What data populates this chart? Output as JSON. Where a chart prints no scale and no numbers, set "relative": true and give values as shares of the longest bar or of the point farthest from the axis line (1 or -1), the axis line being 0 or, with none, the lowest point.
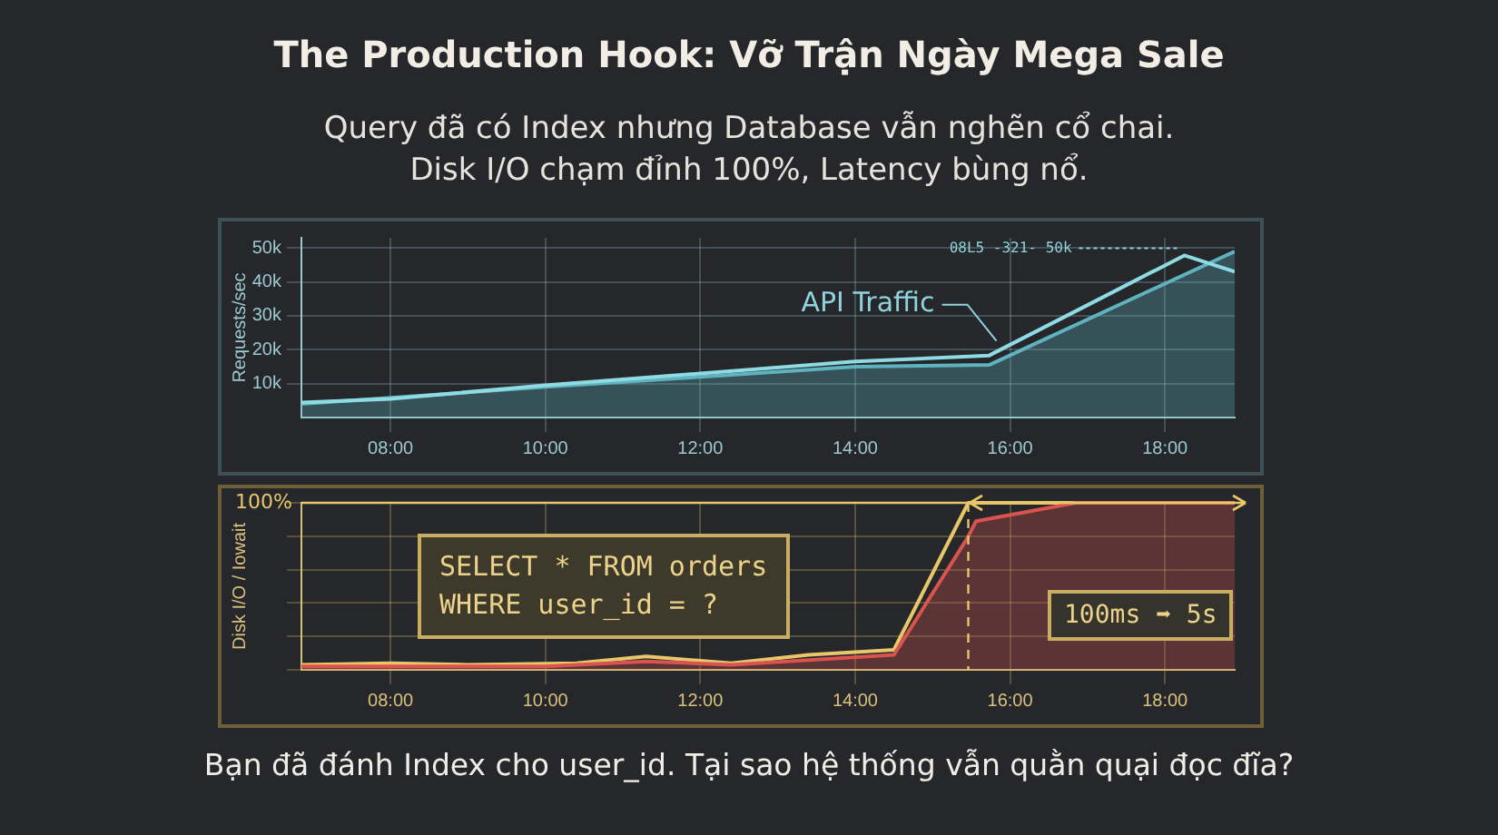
{
  "chart_data": [
    {
      "type": "line",
      "title": "The Production Hook: Vỡ Trận Ngày Mega Sale",
      "subtitle": "Query đã có Index nhưng Database vẫn nghẽn cổ chai.\nDisk I/O chạm đỉnh 100%, Latency bùng nổ.",
      "ylabel": "Requests/sec",
      "xlim": [
        6.85,
        18.9
      ],
      "xticks": [
        {
          "value": 8,
          "label": "08:00"
        },
        {
          "value": 10,
          "label": "10:00"
        },
        {
          "value": 12,
          "label": "12:00"
        },
        {
          "value": 14,
          "label": "14:00"
        },
        {
          "value": 16,
          "label": "16:00"
        },
        {
          "value": 18,
          "label": "18:00"
        }
      ],
      "ylim": [
        0,
        53000
      ],
      "yticks": [
        {
          "value": 10000,
          "label": "10k"
        },
        {
          "value": 20000,
          "label": "20k"
        },
        {
          "value": 30000,
          "label": "30k"
        },
        {
          "value": 40000,
          "label": "40k"
        },
        {
          "value": 50000,
          "label": "50k"
        }
      ],
      "series": [
        {
          "color": "#8fdbe4",
          "x": [
            6.85,
            8,
            10,
            12,
            14,
            15.73,
            17.2,
            18.25,
            18.9
          ],
          "values": [
            4400,
            5500,
            9500,
            13000,
            16500,
            18300,
            35500,
            47800,
            43000
          ]
        },
        {
          "type": "area",
          "color": "#5fb3bf",
          "x": [
            6.85,
            10,
            12,
            14,
            15.73,
            18.9
          ],
          "values": [
            4000,
            9000,
            12000,
            15000,
            15500,
            49000
          ]
        }
      ],
      "annotations": [
        {
          "text": "API Traffic",
          "x": 15.73,
          "y": 18300
        },
        {
          "text": "08L5 -321- 50k",
          "x": 18.25,
          "y": 47800
        }
      ],
      "grid": true,
      "legend": false
    },
    {
      "type": "line",
      "ylabel": "Disk I/O / Iowait",
      "relative": true,
      "xlim": [
        6.85,
        18.9
      ],
      "xticks": [
        {
          "value": 8,
          "label": "08:00"
        },
        {
          "value": 10,
          "label": "10:00"
        },
        {
          "value": 12,
          "label": "12:00"
        },
        {
          "value": 14,
          "label": "14:00"
        },
        {
          "value": 16,
          "label": "16:00"
        },
        {
          "value": 18,
          "label": "18:00"
        }
      ],
      "series": [
        {
          "type": "area",
          "color": "#d9534f",
          "x": [
            6.85,
            10,
            11.3,
            12.4,
            14.5,
            15.45,
            15.56,
            16.85,
            18.9
          ],
          "values": [
            0.02,
            0.02,
            0.05,
            0.03,
            0.09,
            0.79,
            0.89,
            1,
            1
          ]
        },
        {
          "color": "#e8c66a",
          "x": [
            6.85,
            8,
            9,
            10.4,
            11.3,
            12.4,
            13.4,
            14.5,
            15.46,
            18.9
          ],
          "values": [
            0.03,
            0.04,
            0.03,
            0.04,
            0.08,
            0.04,
            0.09,
            0.12,
            1,
            1
          ]
        }
      ],
      "ref_lines": [
        {
          "axis": "x",
          "value": 15.46,
          "color": "#e8c66a",
          "line_style": "dashed"
        },
        {
          "axis": "y",
          "value": 1,
          "label": "100%",
          "color": "#e8c66a",
          "line_style": "solid"
        }
      ],
      "annotations": [
        "SELECT * FROM orders\nWHERE user_id = ?",
        "100ms ➡ 5s",
        "Bạn đã đánh Index cho user_id. Tại sao hệ thống vẫn quằn quại đọc đĩa?"
      ],
      "grid": true,
      "legend": false
    }
  ]
}
